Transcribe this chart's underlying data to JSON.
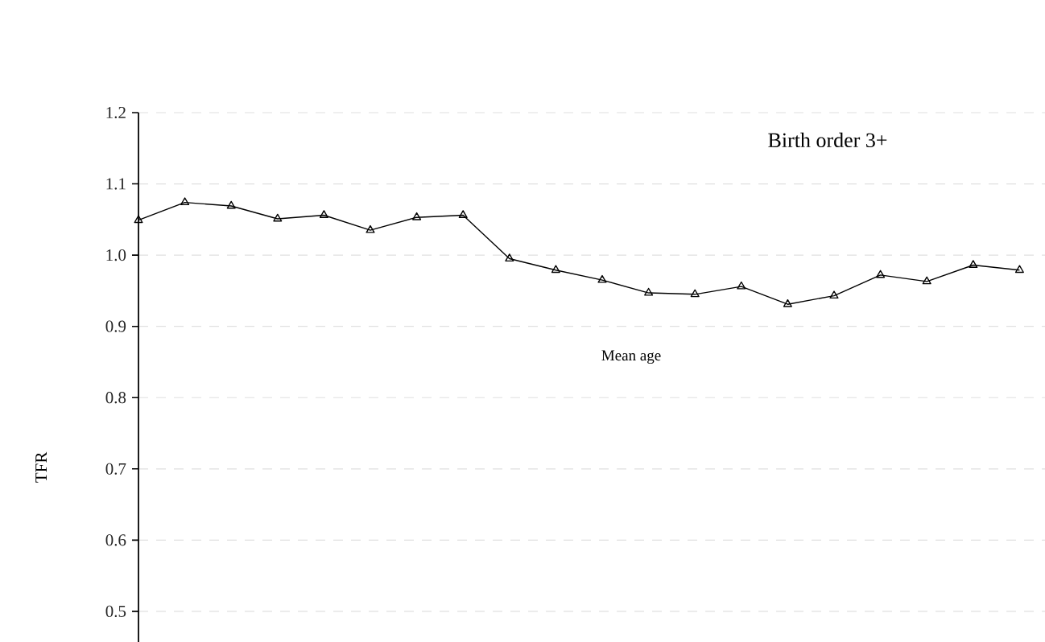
{
  "chart_data": {
    "type": "line",
    "title": "Birth order 3+",
    "ylabel": "TFR",
    "annotations": [
      "Mean age"
    ],
    "categories": [
      null,
      null,
      null,
      null,
      null,
      null,
      null,
      null,
      null,
      null,
      null,
      null,
      null,
      null,
      null,
      null,
      null,
      null,
      null,
      null
    ],
    "values": [
      1.049,
      1.074,
      1.069,
      1.051,
      1.056,
      1.035,
      1.053,
      1.056,
      0.995,
      0.979,
      0.965,
      0.947,
      0.945,
      0.956,
      0.931,
      0.943,
      0.972,
      0.963,
      0.986,
      0.979
    ],
    "color": "#000000",
    "ylim": [
      0.457,
      1.2
    ],
    "yticks": [
      0.5,
      0.6,
      0.7,
      0.8,
      0.9,
      {
        "value": 1.0,
        "label": "1.0"
      },
      1.1,
      1.2
    ],
    "grid": "y",
    "marker": "triangle",
    "line_style": "solid",
    "tick_labels": "y"
  }
}
